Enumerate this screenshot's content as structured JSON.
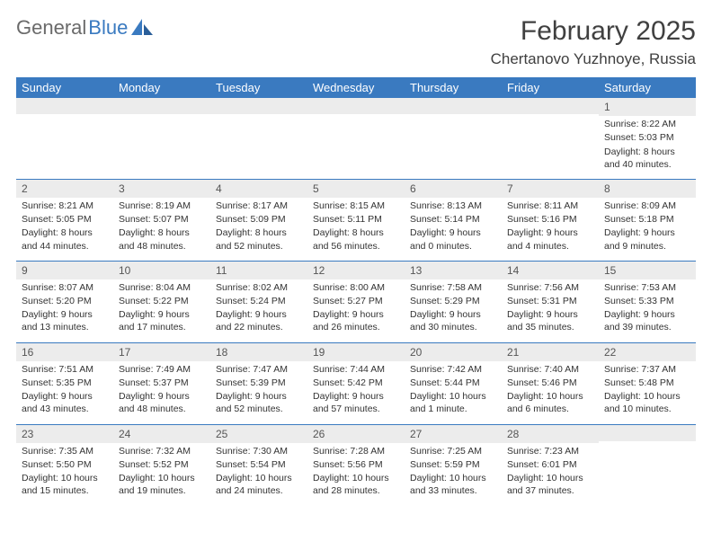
{
  "logo": {
    "text1": "General",
    "text2": "Blue"
  },
  "title": "February 2025",
  "location": "Chertanovo Yuzhnoye, Russia",
  "colors": {
    "header_bg": "#3a7ac0",
    "header_text": "#ffffff",
    "daynum_bg": "#ececec",
    "border": "#3a7ac0",
    "body_text": "#333333"
  },
  "dayNames": [
    "Sunday",
    "Monday",
    "Tuesday",
    "Wednesday",
    "Thursday",
    "Friday",
    "Saturday"
  ],
  "weeks": [
    [
      {
        "n": "",
        "sunrise": "",
        "sunset": "",
        "daylight": ""
      },
      {
        "n": "",
        "sunrise": "",
        "sunset": "",
        "daylight": ""
      },
      {
        "n": "",
        "sunrise": "",
        "sunset": "",
        "daylight": ""
      },
      {
        "n": "",
        "sunrise": "",
        "sunset": "",
        "daylight": ""
      },
      {
        "n": "",
        "sunrise": "",
        "sunset": "",
        "daylight": ""
      },
      {
        "n": "",
        "sunrise": "",
        "sunset": "",
        "daylight": ""
      },
      {
        "n": "1",
        "sunrise": "Sunrise: 8:22 AM",
        "sunset": "Sunset: 5:03 PM",
        "daylight": "Daylight: 8 hours and 40 minutes."
      }
    ],
    [
      {
        "n": "2",
        "sunrise": "Sunrise: 8:21 AM",
        "sunset": "Sunset: 5:05 PM",
        "daylight": "Daylight: 8 hours and 44 minutes."
      },
      {
        "n": "3",
        "sunrise": "Sunrise: 8:19 AM",
        "sunset": "Sunset: 5:07 PM",
        "daylight": "Daylight: 8 hours and 48 minutes."
      },
      {
        "n": "4",
        "sunrise": "Sunrise: 8:17 AM",
        "sunset": "Sunset: 5:09 PM",
        "daylight": "Daylight: 8 hours and 52 minutes."
      },
      {
        "n": "5",
        "sunrise": "Sunrise: 8:15 AM",
        "sunset": "Sunset: 5:11 PM",
        "daylight": "Daylight: 8 hours and 56 minutes."
      },
      {
        "n": "6",
        "sunrise": "Sunrise: 8:13 AM",
        "sunset": "Sunset: 5:14 PM",
        "daylight": "Daylight: 9 hours and 0 minutes."
      },
      {
        "n": "7",
        "sunrise": "Sunrise: 8:11 AM",
        "sunset": "Sunset: 5:16 PM",
        "daylight": "Daylight: 9 hours and 4 minutes."
      },
      {
        "n": "8",
        "sunrise": "Sunrise: 8:09 AM",
        "sunset": "Sunset: 5:18 PM",
        "daylight": "Daylight: 9 hours and 9 minutes."
      }
    ],
    [
      {
        "n": "9",
        "sunrise": "Sunrise: 8:07 AM",
        "sunset": "Sunset: 5:20 PM",
        "daylight": "Daylight: 9 hours and 13 minutes."
      },
      {
        "n": "10",
        "sunrise": "Sunrise: 8:04 AM",
        "sunset": "Sunset: 5:22 PM",
        "daylight": "Daylight: 9 hours and 17 minutes."
      },
      {
        "n": "11",
        "sunrise": "Sunrise: 8:02 AM",
        "sunset": "Sunset: 5:24 PM",
        "daylight": "Daylight: 9 hours and 22 minutes."
      },
      {
        "n": "12",
        "sunrise": "Sunrise: 8:00 AM",
        "sunset": "Sunset: 5:27 PM",
        "daylight": "Daylight: 9 hours and 26 minutes."
      },
      {
        "n": "13",
        "sunrise": "Sunrise: 7:58 AM",
        "sunset": "Sunset: 5:29 PM",
        "daylight": "Daylight: 9 hours and 30 minutes."
      },
      {
        "n": "14",
        "sunrise": "Sunrise: 7:56 AM",
        "sunset": "Sunset: 5:31 PM",
        "daylight": "Daylight: 9 hours and 35 minutes."
      },
      {
        "n": "15",
        "sunrise": "Sunrise: 7:53 AM",
        "sunset": "Sunset: 5:33 PM",
        "daylight": "Daylight: 9 hours and 39 minutes."
      }
    ],
    [
      {
        "n": "16",
        "sunrise": "Sunrise: 7:51 AM",
        "sunset": "Sunset: 5:35 PM",
        "daylight": "Daylight: 9 hours and 43 minutes."
      },
      {
        "n": "17",
        "sunrise": "Sunrise: 7:49 AM",
        "sunset": "Sunset: 5:37 PM",
        "daylight": "Daylight: 9 hours and 48 minutes."
      },
      {
        "n": "18",
        "sunrise": "Sunrise: 7:47 AM",
        "sunset": "Sunset: 5:39 PM",
        "daylight": "Daylight: 9 hours and 52 minutes."
      },
      {
        "n": "19",
        "sunrise": "Sunrise: 7:44 AM",
        "sunset": "Sunset: 5:42 PM",
        "daylight": "Daylight: 9 hours and 57 minutes."
      },
      {
        "n": "20",
        "sunrise": "Sunrise: 7:42 AM",
        "sunset": "Sunset: 5:44 PM",
        "daylight": "Daylight: 10 hours and 1 minute."
      },
      {
        "n": "21",
        "sunrise": "Sunrise: 7:40 AM",
        "sunset": "Sunset: 5:46 PM",
        "daylight": "Daylight: 10 hours and 6 minutes."
      },
      {
        "n": "22",
        "sunrise": "Sunrise: 7:37 AM",
        "sunset": "Sunset: 5:48 PM",
        "daylight": "Daylight: 10 hours and 10 minutes."
      }
    ],
    [
      {
        "n": "23",
        "sunrise": "Sunrise: 7:35 AM",
        "sunset": "Sunset: 5:50 PM",
        "daylight": "Daylight: 10 hours and 15 minutes."
      },
      {
        "n": "24",
        "sunrise": "Sunrise: 7:32 AM",
        "sunset": "Sunset: 5:52 PM",
        "daylight": "Daylight: 10 hours and 19 minutes."
      },
      {
        "n": "25",
        "sunrise": "Sunrise: 7:30 AM",
        "sunset": "Sunset: 5:54 PM",
        "daylight": "Daylight: 10 hours and 24 minutes."
      },
      {
        "n": "26",
        "sunrise": "Sunrise: 7:28 AM",
        "sunset": "Sunset: 5:56 PM",
        "daylight": "Daylight: 10 hours and 28 minutes."
      },
      {
        "n": "27",
        "sunrise": "Sunrise: 7:25 AM",
        "sunset": "Sunset: 5:59 PM",
        "daylight": "Daylight: 10 hours and 33 minutes."
      },
      {
        "n": "28",
        "sunrise": "Sunrise: 7:23 AM",
        "sunset": "Sunset: 6:01 PM",
        "daylight": "Daylight: 10 hours and 37 minutes."
      },
      {
        "n": "",
        "sunrise": "",
        "sunset": "",
        "daylight": ""
      }
    ]
  ]
}
